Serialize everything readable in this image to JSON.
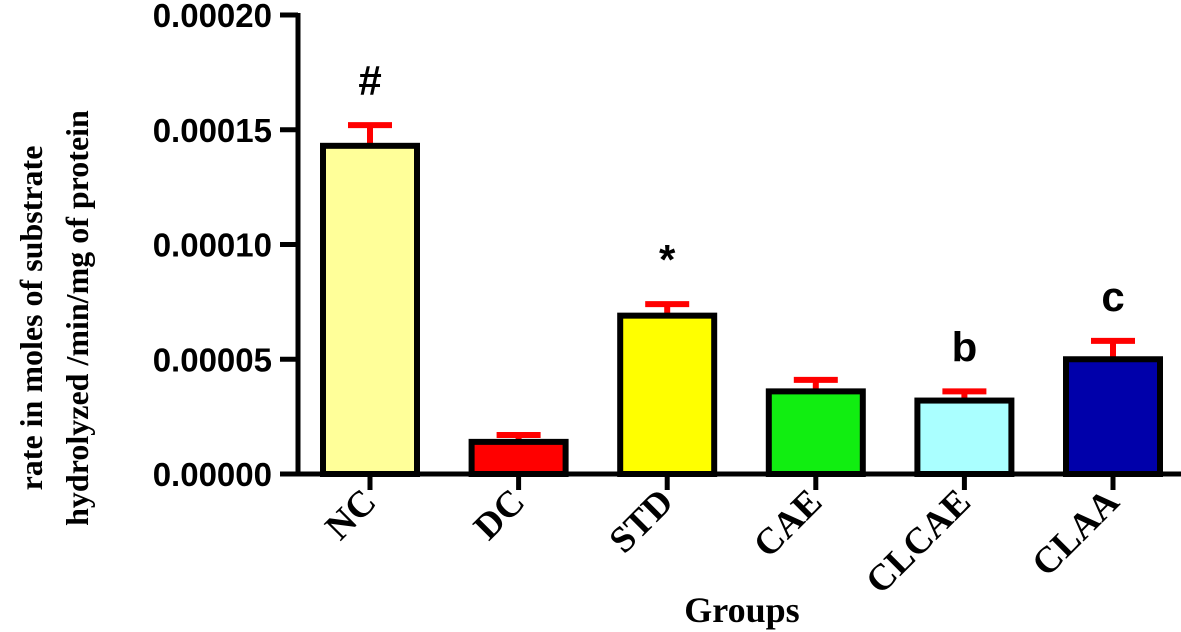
{
  "chart_data": {
    "type": "bar",
    "categories": [
      "NC",
      "DC",
      "STD",
      "CAE",
      "CLCAE",
      "CLAA"
    ],
    "values": [
      0.000143,
      1.4e-05,
      6.9e-05,
      3.6e-05,
      3.2e-05,
      5e-05
    ],
    "errors": [
      9e-06,
      3e-06,
      5e-06,
      5e-06,
      4e-06,
      8e-06
    ],
    "annotations": [
      "#",
      "",
      "*",
      "",
      "b",
      "c"
    ],
    "colors": [
      "#FFFF99",
      "#FF0000",
      "#FFFF00",
      "#11EE11",
      "#AAFFFF",
      "#0000AA"
    ],
    "error_color": "#FF0000",
    "ylim": [
      0,
      0.0002
    ],
    "yticks": [
      "0.00000",
      "0.00005",
      "0.00010",
      "0.00015",
      "0.00020"
    ],
    "ylabel_line1": "rate in moles of substrate",
    "ylabel_line2": "hydrolyzed /min/mg of protein",
    "xlabel": "Groups",
    "grid": false
  }
}
